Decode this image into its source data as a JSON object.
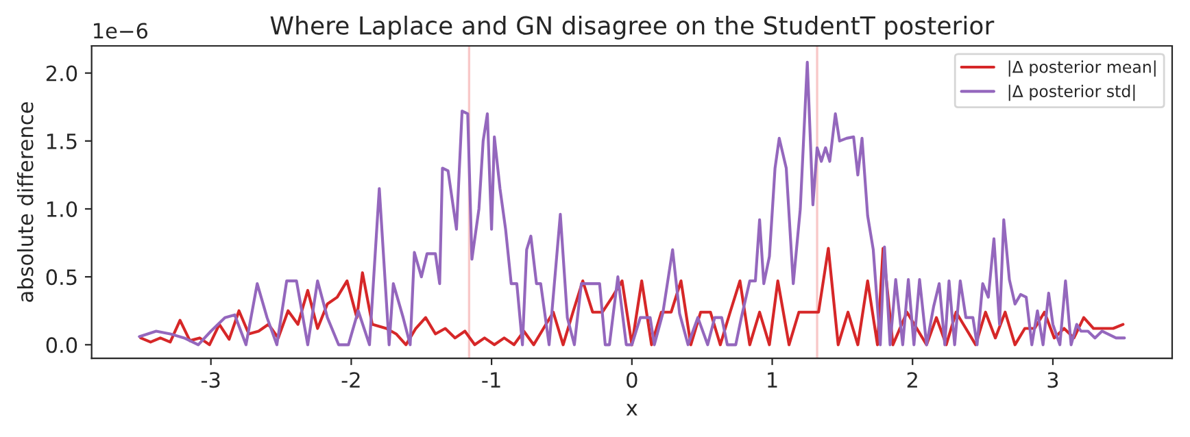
{
  "chart_data": {
    "type": "line",
    "title": "Where Laplace and GN disagree on the StudentT posterior",
    "xlabel": "x",
    "ylabel": "absolute difference",
    "annotations": [
      "1e−6"
    ],
    "xlim": [
      -3.85,
      3.85
    ],
    "xticks": [
      -3,
      -2,
      -1,
      0,
      1,
      2,
      3
    ],
    "ylim": [
      -0.1,
      2.2
    ],
    "yticks": [
      {
        "value": 0,
        "label": "0.0"
      },
      0.5,
      {
        "value": 1,
        "label": "1.0"
      },
      1.5,
      {
        "value": 2,
        "label": "2.0"
      }
    ],
    "grid": false,
    "legend": "top right",
    "line_style": "solid",
    "marker": "none",
    "ref_lines": [
      {
        "axis": "x",
        "value": -1.16,
        "color": "#f8c8c8"
      },
      {
        "axis": "x",
        "value": 1.32,
        "color": "#f8c8c8"
      }
    ],
    "series": [
      {
        "name": "|Δ posterior mean|",
        "color": "#d62728",
        "x": [
          -3.5,
          -3.43,
          -3.36,
          -3.29,
          -3.22,
          -3.15,
          -3.08,
          -3.01,
          -2.94,
          -2.87,
          -2.8,
          -2.73,
          -2.66,
          -2.59,
          -2.52,
          -2.45,
          -2.38,
          -2.31,
          -2.24,
          -2.17,
          -2.1,
          -2.03,
          -1.96,
          -1.92,
          -1.85,
          -1.75,
          -1.68,
          -1.61,
          -1.54,
          -1.47,
          -1.4,
          -1.33,
          -1.26,
          -1.19,
          -1.12,
          -1.05,
          -0.98,
          -0.91,
          -0.84,
          -0.77,
          -0.7,
          -0.63,
          -0.56,
          -0.49,
          -0.42,
          -0.35,
          -0.28,
          -0.21,
          -0.14,
          -0.07,
          0.0,
          0.07,
          0.14,
          0.21,
          0.28,
          0.35,
          0.42,
          0.49,
          0.56,
          0.63,
          0.7,
          0.77,
          0.84,
          0.91,
          0.98,
          1.04,
          1.12,
          1.19,
          1.26,
          1.33,
          1.4,
          1.47,
          1.54,
          1.61,
          1.68,
          1.75,
          1.79,
          1.86,
          1.96,
          2.03,
          2.1,
          2.17,
          2.24,
          2.31,
          2.38,
          2.45,
          2.52,
          2.59,
          2.66,
          2.73,
          2.8,
          2.87,
          2.94,
          3.01,
          3.08,
          3.15,
          3.22,
          3.29,
          3.36,
          3.43,
          3.5
        ],
        "values": [
          0.05,
          0.02,
          0.05,
          0.02,
          0.18,
          0.03,
          0.05,
          0.0,
          0.15,
          0.04,
          0.25,
          0.08,
          0.1,
          0.15,
          0.05,
          0.25,
          0.15,
          0.4,
          0.12,
          0.3,
          0.35,
          0.47,
          0.2,
          0.53,
          0.15,
          0.12,
          0.08,
          0.0,
          0.12,
          0.2,
          0.08,
          0.12,
          0.05,
          0.1,
          0.0,
          0.05,
          0.0,
          0.05,
          0.0,
          0.1,
          0.0,
          0.12,
          0.24,
          0.0,
          0.24,
          0.47,
          0.24,
          0.24,
          0.35,
          0.47,
          0.0,
          0.47,
          0.0,
          0.24,
          0.24,
          0.47,
          0.0,
          0.24,
          0.24,
          0.0,
          0.24,
          0.47,
          0.0,
          0.24,
          0.0,
          0.47,
          0.0,
          0.24,
          0.24,
          0.24,
          0.71,
          0.0,
          0.24,
          0.0,
          0.47,
          0.0,
          0.71,
          0.0,
          0.24,
          0.12,
          0.0,
          0.2,
          0.0,
          0.24,
          0.12,
          0.0,
          0.24,
          0.05,
          0.24,
          0.0,
          0.12,
          0.12,
          0.24,
          0.05,
          0.12,
          0.05,
          0.2,
          0.12,
          0.12,
          0.12,
          0.15
        ]
      },
      {
        "name": "|Δ posterior std|",
        "color": "#9467bd",
        "x": [
          -3.51,
          -3.39,
          -3.29,
          -3.19,
          -3.09,
          -3.0,
          -2.9,
          -2.83,
          -2.75,
          -2.67,
          -2.6,
          -2.53,
          -2.46,
          -2.39,
          -2.31,
          -2.24,
          -2.17,
          -2.09,
          -2.02,
          -1.95,
          -1.87,
          -1.8,
          -1.73,
          -1.7,
          -1.63,
          -1.58,
          -1.55,
          -1.5,
          -1.46,
          -1.4,
          -1.37,
          -1.35,
          -1.31,
          -1.25,
          -1.21,
          -1.17,
          -1.14,
          -1.09,
          -1.06,
          -1.03,
          -1.0,
          -0.98,
          -0.94,
          -0.9,
          -0.86,
          -0.82,
          -0.78,
          -0.75,
          -0.72,
          -0.68,
          -0.65,
          -0.59,
          -0.51,
          -0.46,
          -0.41,
          -0.36,
          -0.29,
          -0.23,
          -0.19,
          -0.16,
          -0.1,
          -0.04,
          0.0,
          0.06,
          0.13,
          0.16,
          0.22,
          0.29,
          0.34,
          0.4,
          0.47,
          0.54,
          0.59,
          0.64,
          0.68,
          0.74,
          0.78,
          0.84,
          0.88,
          0.91,
          0.94,
          0.98,
          1.02,
          1.05,
          1.1,
          1.15,
          1.2,
          1.25,
          1.29,
          1.32,
          1.35,
          1.38,
          1.41,
          1.45,
          1.48,
          1.53,
          1.58,
          1.61,
          1.64,
          1.68,
          1.72,
          1.77,
          1.8,
          1.84,
          1.88,
          1.93,
          1.97,
          2.01,
          2.05,
          2.1,
          2.15,
          2.19,
          2.23,
          2.26,
          2.3,
          2.34,
          2.38,
          2.43,
          2.46,
          2.5,
          2.54,
          2.58,
          2.62,
          2.65,
          2.69,
          2.73,
          2.77,
          2.81,
          2.85,
          2.89,
          2.93,
          2.97,
          3.0,
          3.05,
          3.09,
          3.13,
          3.17,
          3.2,
          3.25,
          3.3,
          3.35,
          3.45,
          3.51
        ],
        "values": [
          0.06,
          0.1,
          0.08,
          0.05,
          0.0,
          0.1,
          0.2,
          0.22,
          0.0,
          0.45,
          0.2,
          0.0,
          0.47,
          0.47,
          0.0,
          0.47,
          0.2,
          0.0,
          0.0,
          0.25,
          0.0,
          1.15,
          0.0,
          0.45,
          0.2,
          0.0,
          0.68,
          0.5,
          0.67,
          0.67,
          0.45,
          1.3,
          1.28,
          0.85,
          1.72,
          1.7,
          0.63,
          1.0,
          1.5,
          1.7,
          0.85,
          1.53,
          1.15,
          0.85,
          0.45,
          0.45,
          0.0,
          0.7,
          0.8,
          0.45,
          0.45,
          0.0,
          0.96,
          0.2,
          0.0,
          0.45,
          0.45,
          0.45,
          0.0,
          0.0,
          0.5,
          0.0,
          0.0,
          0.2,
          0.2,
          0.0,
          0.23,
          0.7,
          0.23,
          0.0,
          0.2,
          0.0,
          0.2,
          0.2,
          0.0,
          0.0,
          0.2,
          0.47,
          0.47,
          0.92,
          0.45,
          0.65,
          1.3,
          1.52,
          1.3,
          0.45,
          1.0,
          2.08,
          1.03,
          1.45,
          1.35,
          1.45,
          1.35,
          1.7,
          1.5,
          1.52,
          1.53,
          1.25,
          1.52,
          0.95,
          0.7,
          0.0,
          0.72,
          0.0,
          0.48,
          0.0,
          0.48,
          0.0,
          0.48,
          0.0,
          0.28,
          0.45,
          0.0,
          0.47,
          0.0,
          0.47,
          0.2,
          0.2,
          0.0,
          0.45,
          0.35,
          0.78,
          0.15,
          0.92,
          0.48,
          0.3,
          0.37,
          0.35,
          0.0,
          0.25,
          0.0,
          0.38,
          0.15,
          0.0,
          0.47,
          0.0,
          0.15,
          0.1,
          0.1,
          0.05,
          0.1,
          0.05,
          0.05
        ]
      }
    ]
  }
}
